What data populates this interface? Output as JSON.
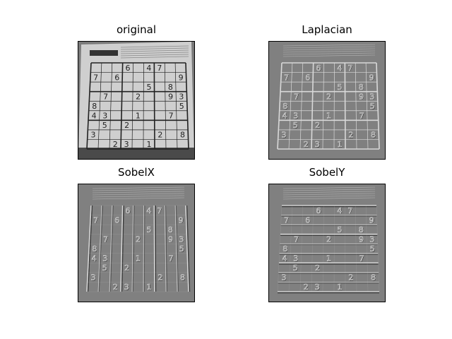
{
  "panels": [
    {
      "title": "original"
    },
    {
      "title": "Laplacian"
    },
    {
      "title": "SobelX"
    },
    {
      "title": "SobelY"
    }
  ],
  "puzzle_cells": [
    {
      "r": 0,
      "c": 3,
      "v": "6"
    },
    {
      "r": 0,
      "c": 5,
      "v": "4"
    },
    {
      "r": 0,
      "c": 6,
      "v": "7"
    },
    {
      "r": 1,
      "c": 0,
      "v": "7"
    },
    {
      "r": 1,
      "c": 2,
      "v": "6"
    },
    {
      "r": 1,
      "c": 8,
      "v": "9"
    },
    {
      "r": 2,
      "c": 5,
      "v": "5"
    },
    {
      "r": 2,
      "c": 7,
      "v": "8"
    },
    {
      "r": 3,
      "c": 1,
      "v": "7"
    },
    {
      "r": 3,
      "c": 4,
      "v": "2"
    },
    {
      "r": 3,
      "c": 7,
      "v": "9"
    },
    {
      "r": 3,
      "c": 8,
      "v": "3"
    },
    {
      "r": 4,
      "c": 0,
      "v": "8"
    },
    {
      "r": 4,
      "c": 8,
      "v": "5"
    },
    {
      "r": 5,
      "c": 0,
      "v": "4"
    },
    {
      "r": 5,
      "c": 1,
      "v": "3"
    },
    {
      "r": 5,
      "c": 4,
      "v": "1"
    },
    {
      "r": 5,
      "c": 7,
      "v": "7"
    },
    {
      "r": 6,
      "c": 1,
      "v": "5"
    },
    {
      "r": 6,
      "c": 3,
      "v": "2"
    },
    {
      "r": 7,
      "c": 0,
      "v": "3"
    },
    {
      "r": 7,
      "c": 6,
      "v": "2"
    },
    {
      "r": 7,
      "c": 8,
      "v": "8"
    },
    {
      "r": 8,
      "c": 2,
      "v": "2"
    },
    {
      "r": 8,
      "c": 3,
      "v": "3"
    },
    {
      "r": 8,
      "c": 5,
      "v": "1"
    }
  ],
  "colors": {
    "original_bg": "#7a7a7a",
    "paper": "#cfcfcf",
    "ink": "#222222",
    "filter_bg": "#808080",
    "edge_light": "#d8d8d8",
    "edge_dark": "#3a3a3a"
  }
}
